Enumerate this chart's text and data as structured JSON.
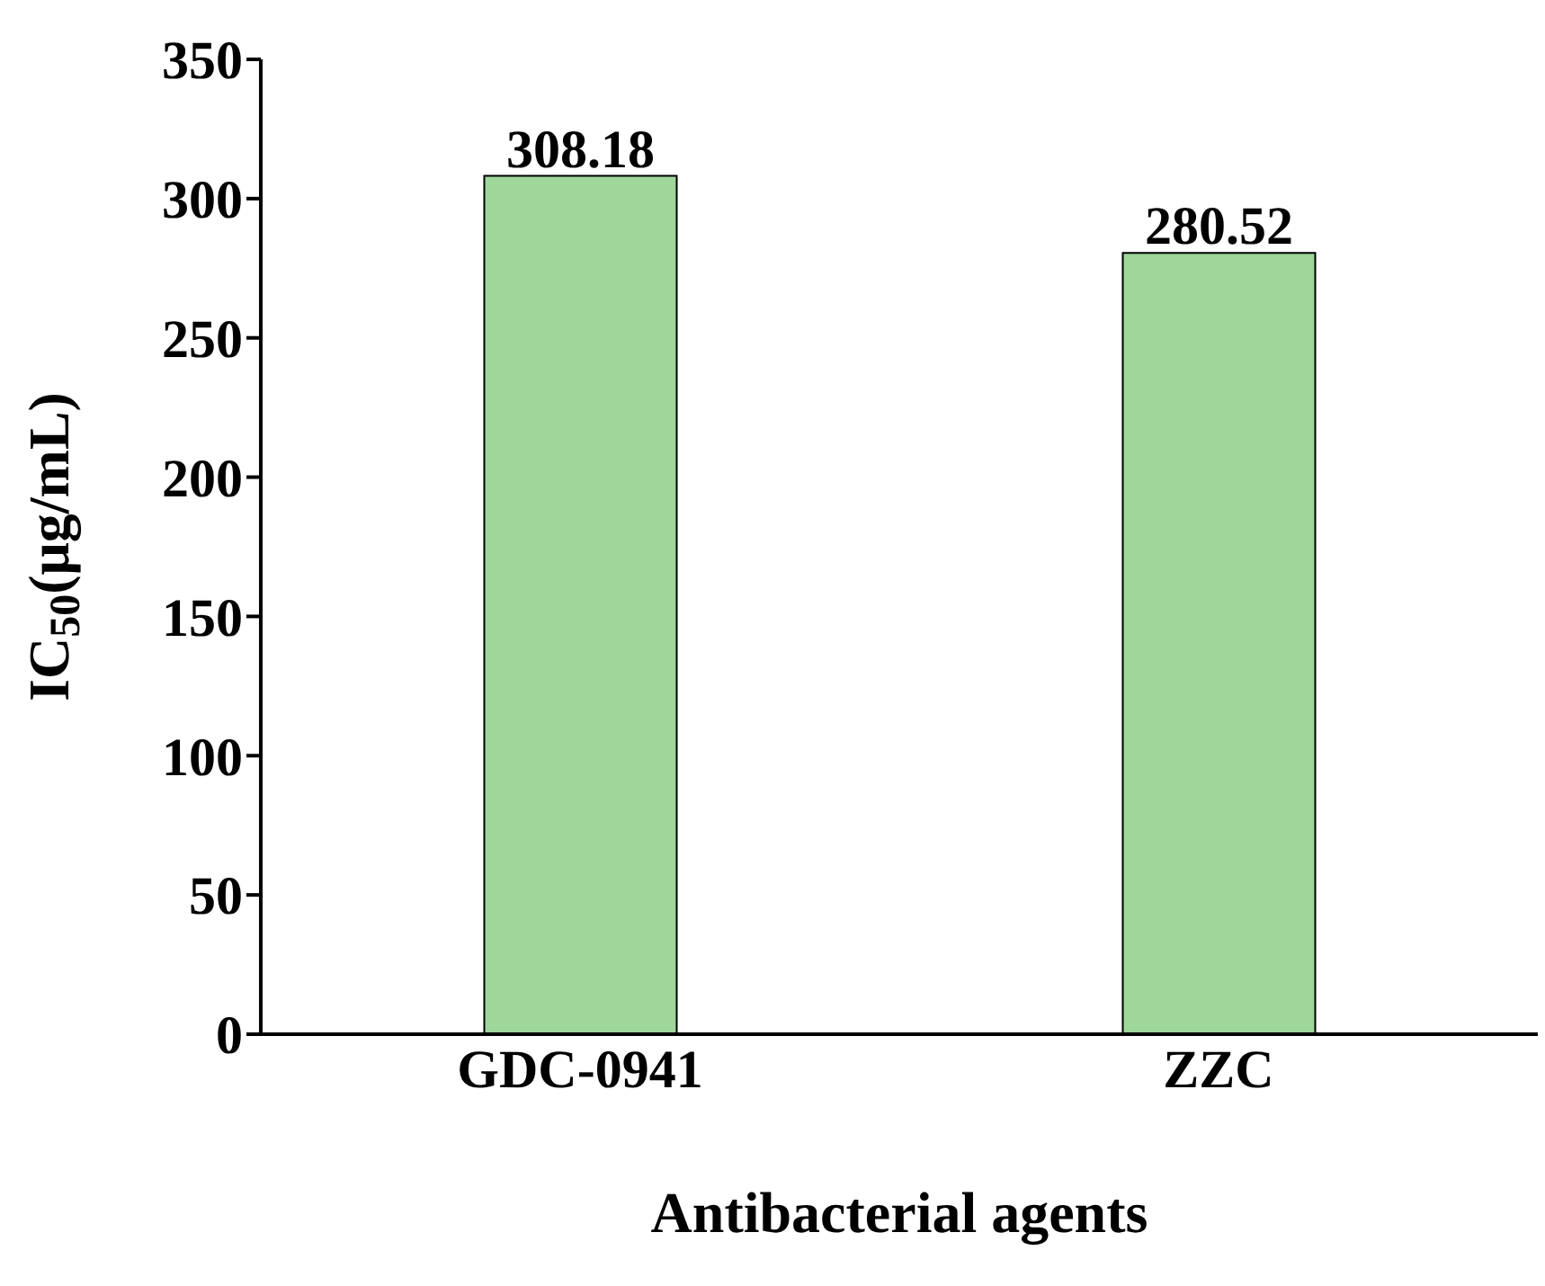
{
  "chart_data": {
    "type": "bar",
    "xlabel": "Antibacterial agents",
    "ylabel": "IC$_{50}$(μg/mL)",
    "categories": [
      "GDC-0941",
      "ZZC"
    ],
    "values": [
      308.18,
      280.52
    ],
    "color": "#9fd69a",
    "ylim": [
      0,
      350
    ],
    "yticks": [
      0,
      50,
      100,
      150,
      200,
      250,
      300,
      350
    ],
    "data_labels": true,
    "grid": false,
    "legend": false
  }
}
